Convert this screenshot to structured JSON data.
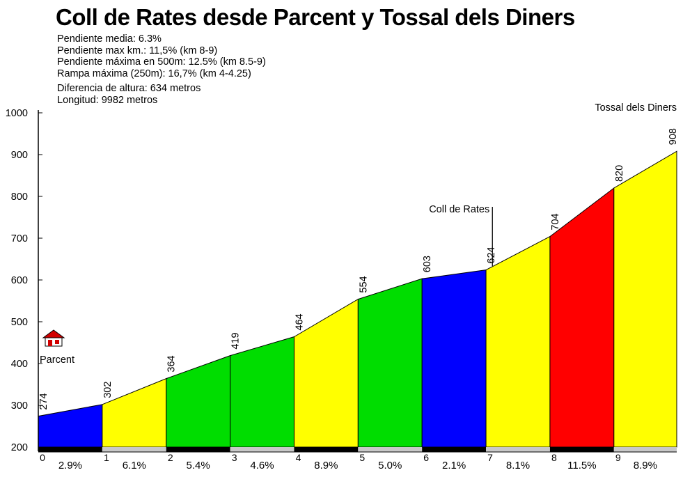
{
  "header": {
    "title": "Coll de Rates desde Parcent y Tossal dels Diners",
    "stats": [
      "Pendiente media: 6.3%",
      "Pendiente max km.: 11,5% (km 8-9)",
      "Pendiente máxima en 500m: 12.5% (km 8.5-9)",
      "Rampa máxima (250m): 16,7% (km 4-4.25)"
    ],
    "stats2": [
      "Diferencia de altura: 634 metros",
      "Longitud: 9982 metros"
    ]
  },
  "chart_data": {
    "type": "area",
    "title": "Coll de Rates desde Parcent y Tossal dels Diners",
    "xlabel": "",
    "ylabel": "",
    "ylim": [
      200,
      1000
    ],
    "yticks": [
      200,
      300,
      400,
      500,
      600,
      700,
      800,
      900,
      1000
    ],
    "x": [
      0,
      1,
      2,
      3,
      4,
      5,
      6,
      7,
      8,
      9,
      9.982
    ],
    "xtick_labels": [
      "0",
      "1",
      "2",
      "3",
      "4",
      "5",
      "6",
      "7",
      "8",
      "9"
    ],
    "elevations": [
      274,
      302,
      364,
      419,
      464,
      554,
      603,
      624,
      704,
      820,
      908
    ],
    "segments": [
      {
        "km": "0-1",
        "gradient": "2.9%",
        "color": "#0000ff"
      },
      {
        "km": "1-2",
        "gradient": "6.1%",
        "color": "#ffff00"
      },
      {
        "km": "2-3",
        "gradient": "5.4%",
        "color": "#00dd00"
      },
      {
        "km": "3-4",
        "gradient": "4.6%",
        "color": "#00dd00"
      },
      {
        "km": "4-5",
        "gradient": "8.9%",
        "color": "#ffff00"
      },
      {
        "km": "5-6",
        "gradient": "5.0%",
        "color": "#00dd00"
      },
      {
        "km": "6-7",
        "gradient": "2.1%",
        "color": "#0000ff"
      },
      {
        "km": "7-8",
        "gradient": "8.1%",
        "color": "#ffff00"
      },
      {
        "km": "8-9",
        "gradient": "11.5%",
        "color": "#ff0000"
      },
      {
        "km": "9-9.98",
        "gradient": "8.9%",
        "color": "#ffff00"
      }
    ],
    "annotations": [
      {
        "text": "Parcent",
        "x": 0,
        "icon": "village-icon"
      },
      {
        "text": "Coll de Rates",
        "x": 7.1,
        "y": 630
      },
      {
        "text": "Tossal dels Diners",
        "x": 9.982
      }
    ],
    "grid": false
  }
}
